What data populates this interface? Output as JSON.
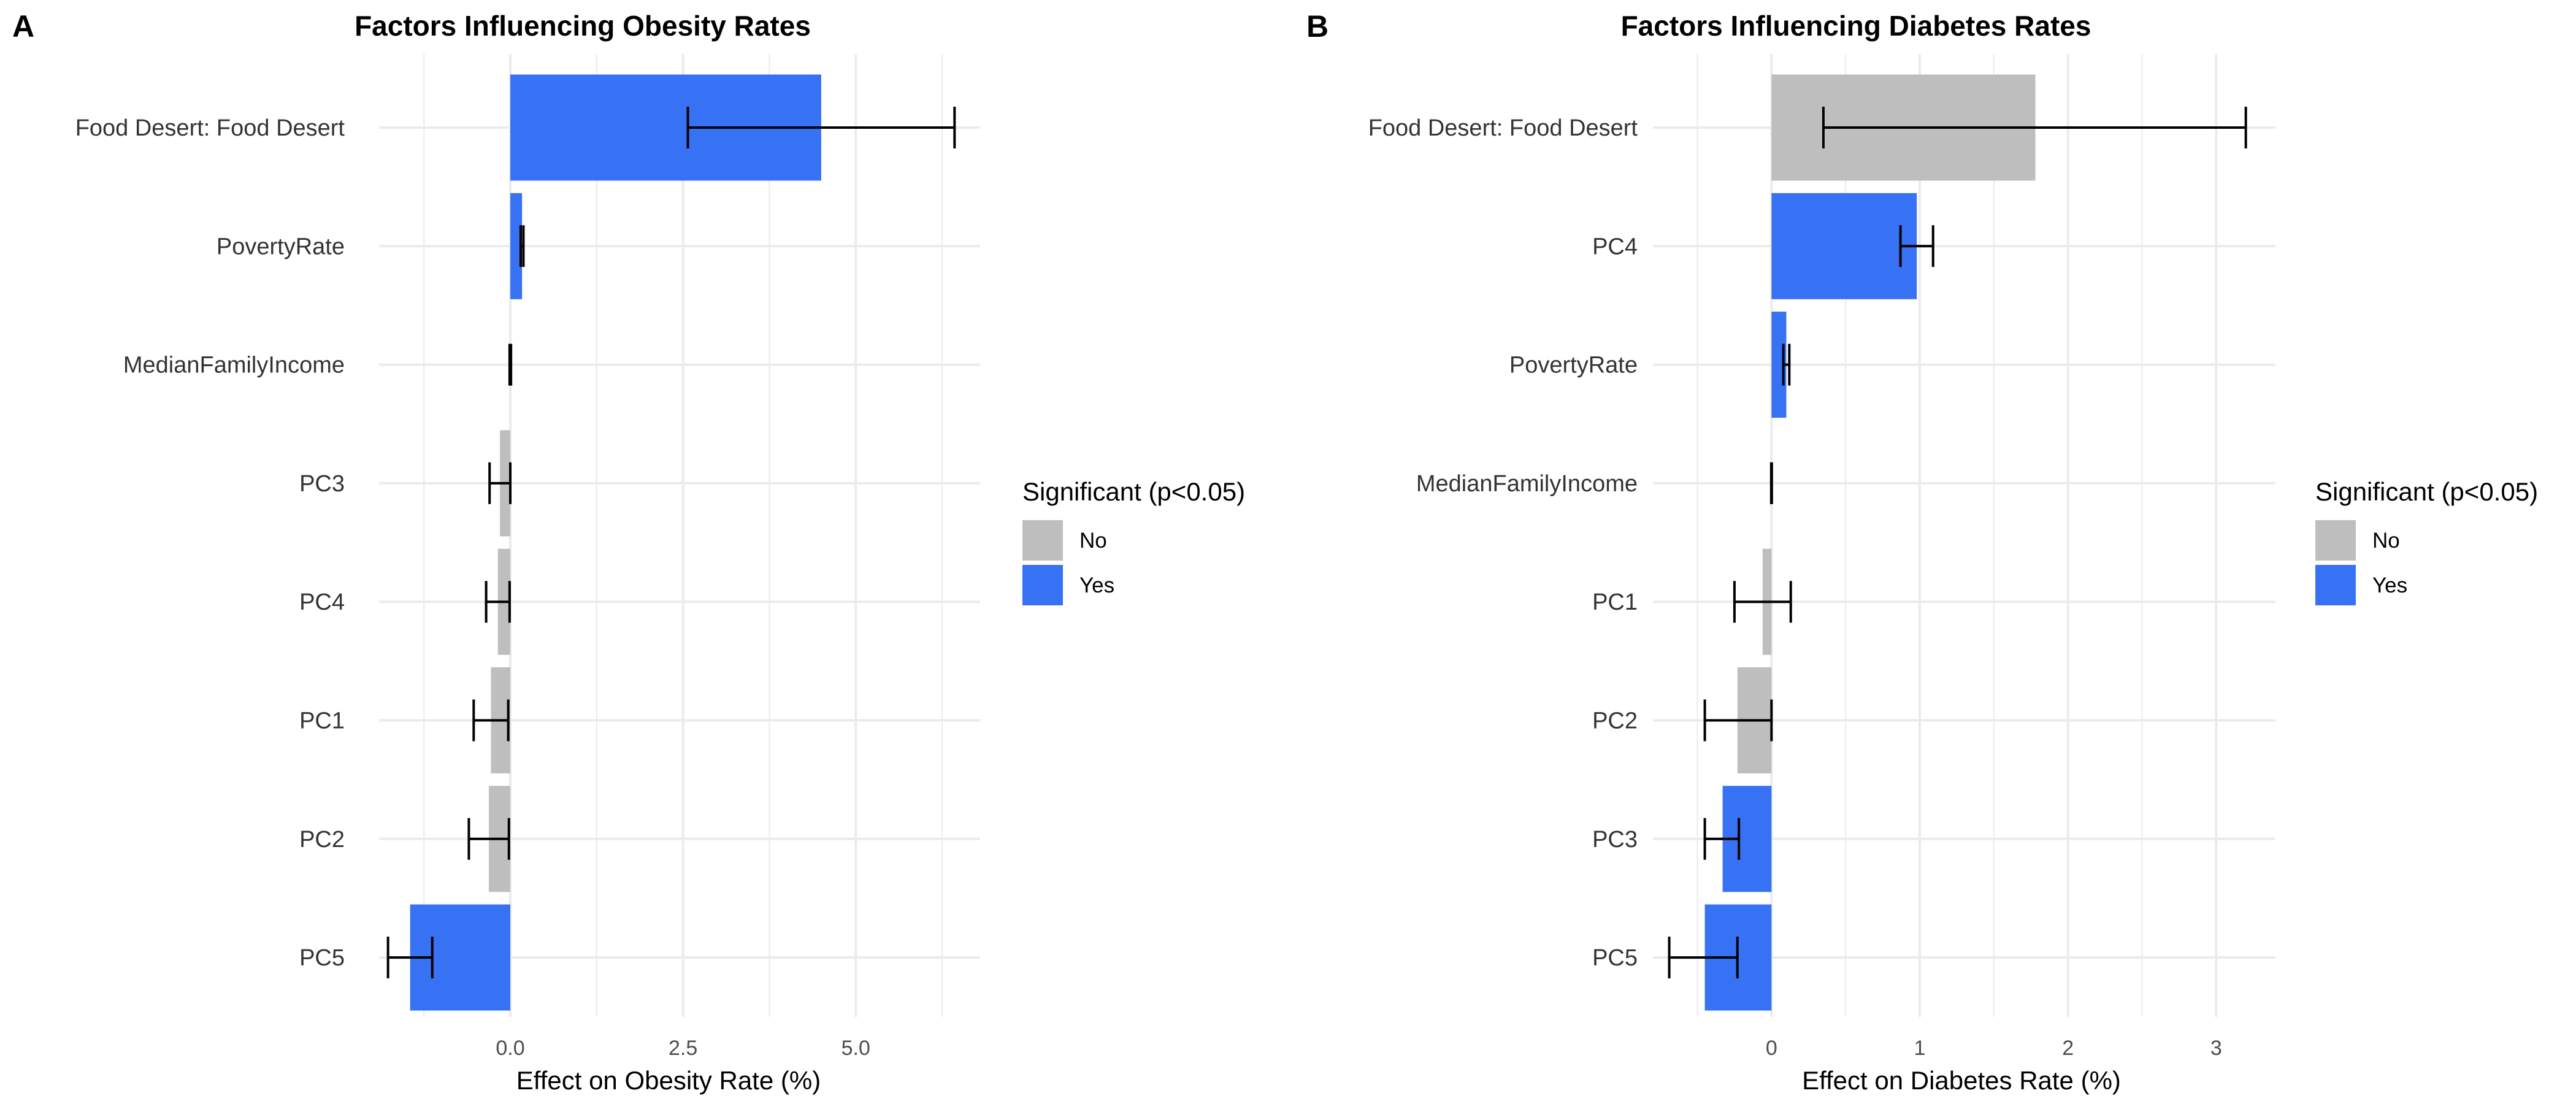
{
  "chart_data": [
    {
      "panel": "A",
      "type": "bar",
      "orientation": "horizontal",
      "title": "Factors Influencing Obesity Rates",
      "xlabel": "Effect on Obesity Rate (%)",
      "ylabel": "",
      "xlim": [
        -1.9,
        6.8
      ],
      "xticks": [
        0,
        2.5,
        5
      ],
      "xtick_labels": [
        "0.0",
        "2.5",
        "5.0"
      ],
      "grid": true,
      "legend_placement": "right",
      "categories": [
        "Food Desert: Food Desert",
        "PovertyRate",
        "MedianFamilyIncome",
        "PC3",
        "PC4",
        "PC1",
        "PC2",
        "PC5"
      ],
      "values": [
        4.5,
        0.17,
        0.0,
        -0.15,
        -0.18,
        -0.28,
        -0.31,
        -1.45
      ],
      "ci_low": [
        2.57,
        0.15,
        -0.01,
        -0.3,
        -0.35,
        -0.53,
        -0.6,
        -1.77
      ],
      "ci_high": [
        6.43,
        0.19,
        0.01,
        0.0,
        -0.01,
        -0.03,
        -0.02,
        -1.13
      ],
      "significant": [
        "Yes",
        "Yes",
        "No",
        "No",
        "No",
        "No",
        "No",
        "Yes"
      ]
    },
    {
      "panel": "B",
      "type": "bar",
      "orientation": "horizontal",
      "title": "Factors Influencing Diabetes Rates",
      "xlabel": "Effect on Diabetes Rate (%)",
      "ylabel": "",
      "xlim": [
        -0.8,
        3.4
      ],
      "xticks": [
        0,
        1,
        2,
        3
      ],
      "xtick_labels": [
        "0",
        "1",
        "2",
        "3"
      ],
      "grid": true,
      "legend_placement": "right",
      "categories": [
        "Food Desert: Food Desert",
        "PC4",
        "PovertyRate",
        "MedianFamilyIncome",
        "PC1",
        "PC2",
        "PC3",
        "PC5"
      ],
      "values": [
        1.78,
        0.98,
        0.1,
        0.0,
        -0.06,
        -0.23,
        -0.33,
        -0.45
      ],
      "ci_low": [
        0.35,
        0.87,
        0.08,
        -0.002,
        -0.25,
        -0.45,
        -0.45,
        -0.69
      ],
      "ci_high": [
        3.2,
        1.09,
        0.12,
        0.002,
        0.13,
        0.0,
        -0.22,
        -0.23
      ],
      "significant": [
        "No",
        "Yes",
        "Yes",
        "No",
        "No",
        "No",
        "Yes",
        "Yes"
      ]
    }
  ],
  "legend": {
    "title": "Significant (p<0.05)",
    "items": [
      {
        "label": "No",
        "color": "#bebebe"
      },
      {
        "label": "Yes",
        "color": "#3771f4"
      }
    ]
  },
  "colors": {
    "no": "#bebebe",
    "yes": "#3771f4",
    "grid": "#ebebeb",
    "errorbar": "#000000"
  }
}
